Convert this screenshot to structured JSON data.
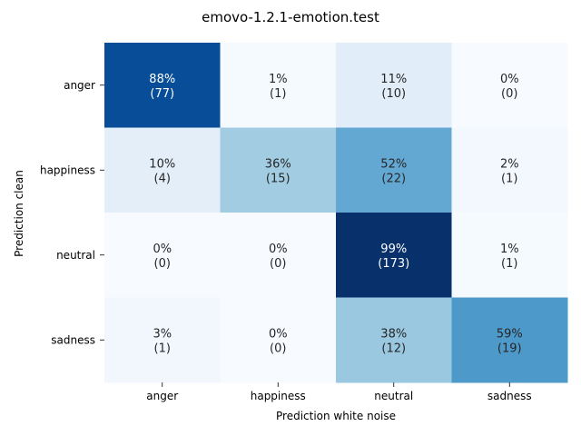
{
  "chart_data": {
    "type": "heatmap",
    "title": "emovo-1.2.1-emotion.test",
    "xlabel": "Prediction white noise",
    "ylabel": "Prediction clean",
    "x_categories": [
      "anger",
      "happiness",
      "neutral",
      "sadness"
    ],
    "y_categories": [
      "anger",
      "happiness",
      "neutral",
      "sadness"
    ],
    "colormap": "Blues",
    "percent": [
      [
        88,
        1,
        11,
        0
      ],
      [
        10,
        36,
        52,
        2
      ],
      [
        0,
        0,
        99,
        1
      ],
      [
        3,
        0,
        38,
        59
      ]
    ],
    "counts": [
      [
        77,
        1,
        10,
        0
      ],
      [
        4,
        15,
        22,
        1
      ],
      [
        0,
        0,
        173,
        1
      ],
      [
        1,
        0,
        12,
        19
      ]
    ],
    "cell_labels": [
      [
        "88%\n(77)",
        "1%\n(1)",
        "11%\n(10)",
        "0%\n(0)"
      ],
      [
        "10%\n(4)",
        "36%\n(15)",
        "52%\n(22)",
        "2%\n(1)"
      ],
      [
        "0%\n(0)",
        "0%\n(0)",
        "99%\n(173)",
        "1%\n(1)"
      ],
      [
        "3%\n(1)",
        "0%\n(0)",
        "38%\n(12)",
        "59%\n(19)"
      ]
    ],
    "colorbar": false
  }
}
